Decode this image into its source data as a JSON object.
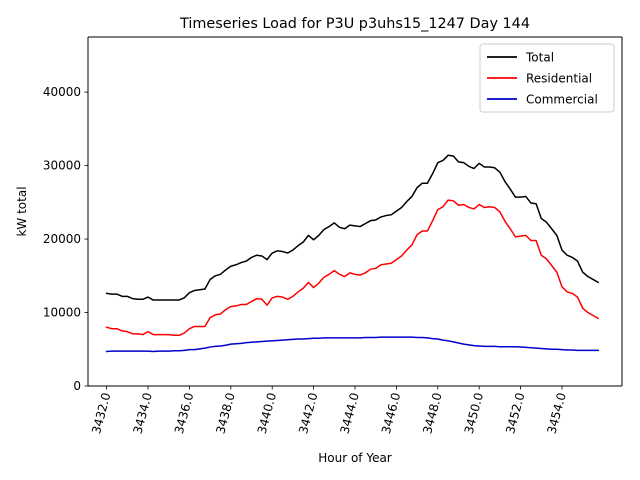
{
  "chart_data": {
    "type": "line",
    "title": "Timeseries Load for P3U p3uhs15_1247  Day 144",
    "xlabel": "Hour of Year",
    "ylabel": "kW total",
    "xlim": [
      3431.1,
      3456.9
    ],
    "ylim": [
      0,
      47500
    ],
    "xticks": [
      3432,
      3434,
      3436,
      3438,
      3440,
      3442,
      3444,
      3446,
      3448,
      3450,
      3452,
      3454
    ],
    "xtick_labels": [
      "3432.0",
      "3434.0",
      "3436.0",
      "3438.0",
      "3440.0",
      "3442.0",
      "3444.0",
      "3446.0",
      "3448.0",
      "3450.0",
      "3452.0",
      "3454.0"
    ],
    "yticks": [
      0,
      10000,
      20000,
      30000,
      40000
    ],
    "ytick_labels": [
      "0",
      "10000",
      "20000",
      "30000",
      "40000"
    ],
    "legend_position": "top-right",
    "grid": false,
    "x_start": 3432,
    "x_step": 0.25,
    "series": [
      {
        "name": "Total",
        "color": "#000000",
        "values": [
          12600,
          12500,
          12500,
          12200,
          12200,
          11900,
          11800,
          11800,
          12100,
          11700,
          11700,
          11700,
          11700,
          11700,
          11700,
          12000,
          12700,
          13000,
          13100,
          13200,
          14500,
          15000,
          15200,
          15800,
          16300,
          16500,
          16800,
          17000,
          17500,
          17800,
          17700,
          17200,
          18100,
          18400,
          18300,
          18100,
          18500,
          19100,
          19600,
          20500,
          19900,
          20500,
          21300,
          21700,
          22200,
          21600,
          21400,
          21900,
          21800,
          21700,
          22100,
          22500,
          22600,
          23000,
          23200,
          23300,
          23800,
          24300,
          25100,
          25800,
          27000,
          27600,
          27600,
          28900,
          30400,
          30700,
          31400,
          31300,
          30500,
          30400,
          29900,
          29600,
          30300,
          29800,
          29800,
          29700,
          29100,
          27800,
          26800,
          25700,
          25700,
          25800,
          24900,
          24800,
          22800,
          22300,
          21400,
          20500,
          18500,
          17800,
          17500,
          17000,
          15500,
          14900,
          14500,
          14100
        ]
      },
      {
        "name": "Residential",
        "color": "#ff0000",
        "values": [
          8000,
          7800,
          7800,
          7500,
          7400,
          7100,
          7100,
          7000,
          7400,
          7000,
          7000,
          7000,
          7000,
          6900,
          6900,
          7200,
          7800,
          8100,
          8100,
          8100,
          9300,
          9700,
          9800,
          10400,
          10800,
          10900,
          11100,
          11100,
          11500,
          11900,
          11800,
          11000,
          12000,
          12200,
          12100,
          11800,
          12200,
          12800,
          13300,
          14100,
          13400,
          14000,
          14800,
          15200,
          15700,
          15200,
          14900,
          15400,
          15200,
          15100,
          15400,
          15900,
          16000,
          16500,
          16600,
          16700,
          17200,
          17700,
          18500,
          19200,
          20600,
          21100,
          21100,
          22500,
          24000,
          24400,
          25300,
          25200,
          24600,
          24700,
          24300,
          24100,
          24700,
          24300,
          24400,
          24300,
          23700,
          22400,
          21400,
          20300,
          20400,
          20500,
          19800,
          19800,
          17800,
          17300,
          16400,
          15500,
          13500,
          12800,
          12600,
          12100,
          10600,
          10000,
          9600,
          9200
        ]
      },
      {
        "name": "Commercial",
        "color": "#0000cc",
        "values": [
          4700,
          4750,
          4750,
          4750,
          4750,
          4750,
          4750,
          4750,
          4750,
          4700,
          4750,
          4750,
          4750,
          4800,
          4800,
          4850,
          4950,
          4950,
          5050,
          5150,
          5300,
          5400,
          5450,
          5550,
          5700,
          5750,
          5800,
          5900,
          5950,
          6000,
          6050,
          6100,
          6150,
          6200,
          6250,
          6300,
          6350,
          6400,
          6400,
          6450,
          6500,
          6500,
          6550,
          6550,
          6550,
          6550,
          6550,
          6550,
          6550,
          6550,
          6600,
          6600,
          6600,
          6650,
          6650,
          6650,
          6650,
          6650,
          6650,
          6650,
          6600,
          6600,
          6550,
          6450,
          6400,
          6250,
          6150,
          6000,
          5850,
          5700,
          5600,
          5500,
          5450,
          5400,
          5400,
          5400,
          5350,
          5350,
          5350,
          5350,
          5300,
          5250,
          5200,
          5150,
          5100,
          5050,
          5000,
          5000,
          4950,
          4900,
          4900,
          4850,
          4850,
          4850,
          4850,
          4850
        ]
      }
    ]
  }
}
